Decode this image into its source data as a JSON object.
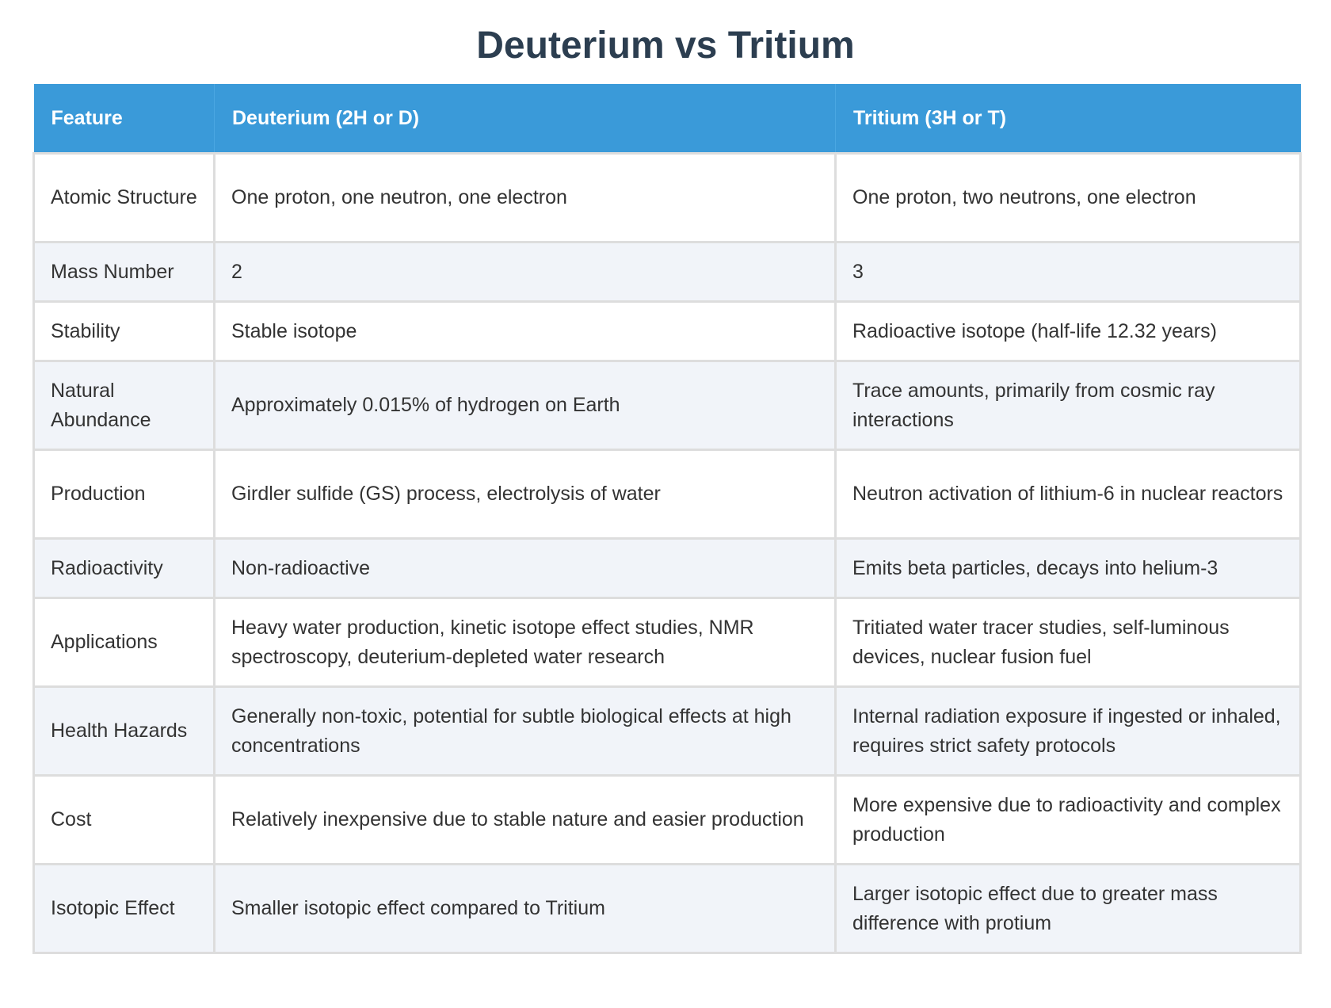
{
  "title": "Deuterium vs Tritium",
  "table": {
    "headers": [
      "Feature",
      "Deuterium (2H or D)",
      "Tritium (3H or T)"
    ],
    "rows": [
      [
        "Atomic Structure",
        "One proton, one neutron, one electron",
        "One proton, two neutrons, one electron"
      ],
      [
        "Mass Number",
        "2",
        "3"
      ],
      [
        "Stability",
        "Stable isotope",
        "Radioactive isotope (half-life 12.32 years)"
      ],
      [
        "Natural Abundance",
        "Approximately 0.015% of hydrogen on Earth",
        "Trace amounts, primarily from cosmic ray interactions"
      ],
      [
        "Production",
        "Girdler sulfide (GS) process, electrolysis of water",
        "Neutron activation of lithium-6 in nuclear reactors"
      ],
      [
        "Radioactivity",
        "Non-radioactive",
        "Emits beta particles, decays into helium-3"
      ],
      [
        "Applications",
        "Heavy water production, kinetic isotope effect studies, NMR spectroscopy, deuterium-depleted water research",
        "Tritiated water tracer studies, self-luminous devices, nuclear fusion fuel"
      ],
      [
        "Health Hazards",
        "Generally non-toxic, potential for subtle biological effects at high concentrations",
        "Internal radiation exposure if ingested or inhaled, requires strict safety protocols"
      ],
      [
        "Cost",
        "Relatively inexpensive due to stable nature and easier production",
        "More expensive due to radioactivity and complex production"
      ],
      [
        "Isotopic Effect",
        "Smaller isotopic effect compared to Tritium",
        "Larger isotopic effect due to greater mass difference with protium"
      ]
    ]
  },
  "colors": {
    "title": "#2c3e50",
    "header_bg": "#3a9ad9",
    "header_text": "#ffffff",
    "row_alt_bg": "#f1f4f9",
    "border": "#dddddd"
  }
}
